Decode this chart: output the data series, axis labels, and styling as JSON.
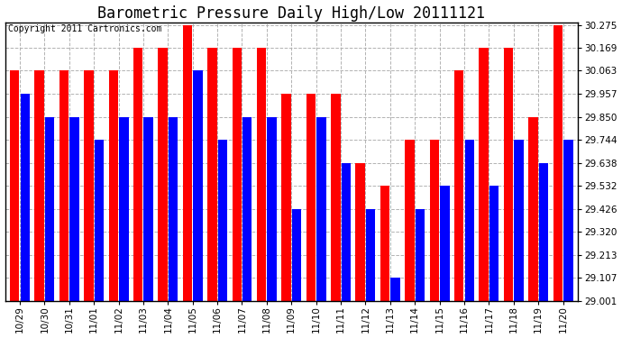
{
  "title": "Barometric Pressure Daily High/Low 20111121",
  "copyright": "Copyright 2011 Cartronics.com",
  "categories": [
    "10/29",
    "10/30",
    "10/31",
    "11/01",
    "11/02",
    "11/03",
    "11/04",
    "11/05",
    "11/06",
    "11/07",
    "11/08",
    "11/09",
    "11/10",
    "11/11",
    "11/12",
    "11/13",
    "11/14",
    "11/15",
    "11/16",
    "11/17",
    "11/18",
    "11/19",
    "11/20"
  ],
  "highs": [
    30.063,
    30.063,
    30.063,
    30.063,
    30.063,
    30.169,
    30.169,
    30.275,
    30.169,
    30.169,
    30.169,
    29.957,
    29.957,
    29.957,
    29.638,
    29.532,
    29.744,
    29.744,
    30.063,
    30.169,
    30.169,
    29.85,
    30.275
  ],
  "lows": [
    29.957,
    29.85,
    29.85,
    29.744,
    29.85,
    29.85,
    29.85,
    30.063,
    29.744,
    29.85,
    29.85,
    29.426,
    29.85,
    29.638,
    29.426,
    29.107,
    29.426,
    29.532,
    29.744,
    29.532,
    29.744,
    29.638,
    29.744
  ],
  "high_color": "#ff0000",
  "low_color": "#0000ff",
  "bg_color": "#ffffff",
  "plot_bg_color": "#ffffff",
  "grid_color": "#aaaaaa",
  "ymin": 29.001,
  "ymax": 30.275,
  "yticks": [
    29.001,
    29.107,
    29.213,
    29.32,
    29.426,
    29.532,
    29.638,
    29.744,
    29.85,
    29.957,
    30.063,
    30.169,
    30.275
  ],
  "title_fontsize": 12,
  "tick_fontsize": 7.5,
  "copyright_fontsize": 7,
  "bar_width": 0.38,
  "bar_gap": 0.04
}
